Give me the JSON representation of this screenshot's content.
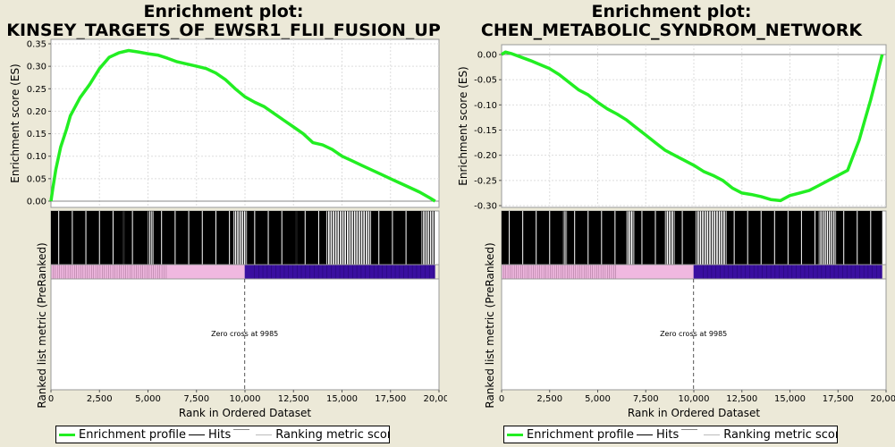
{
  "chart_data": [
    {
      "type": "line",
      "title": [
        "Enrichment plot:",
        "KINSEY_TARGETS_OF_EWSR1_FLII_FUSION_UP"
      ],
      "ylabel": "Enrichment score (ES)",
      "xlabel": "Rank in Ordered Dataset",
      "bottom_ylabel": "Ranked list metric (PreRanked)",
      "ylim": [
        0,
        0.35
      ],
      "yticks": [
        "0.00",
        "0.05",
        "0.10",
        "0.15",
        "0.20",
        "0.25",
        "0.30",
        "0.35"
      ],
      "xlim": [
        0,
        20000
      ],
      "xticks": [
        "0",
        "2,500",
        "5,000",
        "7,500",
        "10,000",
        "12,500",
        "15,000",
        "17,500",
        "20,000"
      ],
      "zero_cross_label": "Zero cross at 9985",
      "zero_cross": 9985,
      "n_genes": 19800,
      "series": [
        {
          "name": "Enrichment profile",
          "color": "#22ee22",
          "x": [
            0,
            100,
            250,
            500,
            800,
            1000,
            1500,
            2000,
            2500,
            3000,
            3500,
            4000,
            4500,
            5000,
            5500,
            6000,
            6500,
            7000,
            7500,
            8000,
            8500,
            9000,
            9500,
            10000,
            10500,
            11000,
            11500,
            12000,
            12500,
            13000,
            13500,
            14000,
            14500,
            15000,
            15500,
            16000,
            16500,
            17000,
            17500,
            18000,
            18500,
            19000,
            19500,
            19800
          ],
          "y": [
            0.0,
            0.03,
            0.07,
            0.12,
            0.16,
            0.19,
            0.23,
            0.26,
            0.295,
            0.32,
            0.33,
            0.335,
            0.332,
            0.328,
            0.325,
            0.318,
            0.31,
            0.305,
            0.3,
            0.295,
            0.285,
            0.27,
            0.25,
            0.232,
            0.22,
            0.21,
            0.195,
            0.18,
            0.165,
            0.15,
            0.13,
            0.125,
            0.115,
            0.1,
            0.09,
            0.08,
            0.07,
            0.06,
            0.05,
            0.04,
            0.03,
            0.02,
            0.008,
            0.0
          ]
        }
      ],
      "hits_dense_ranges": [
        [
          0,
          3700
        ],
        [
          3800,
          5000
        ],
        [
          5300,
          9400
        ],
        [
          10100,
          12600
        ],
        [
          12700,
          14200
        ],
        [
          16500,
          19100
        ]
      ],
      "hits_sparse_ranges": [
        [
          3700,
          3800
        ],
        [
          5000,
          5300
        ],
        [
          9400,
          10100
        ],
        [
          12600,
          12700
        ],
        [
          14200,
          16500
        ],
        [
          19100,
          19800
        ]
      ]
    },
    {
      "type": "line",
      "title": [
        "Enrichment plot:",
        "CHEN_METABOLIC_SYNDROM_NETWORK"
      ],
      "ylabel": "Enrichment score (ES)",
      "xlabel": "Rank in Ordered Dataset",
      "bottom_ylabel": "Ranked list metric (PreRanked)",
      "ylim": [
        -0.3,
        0.0
      ],
      "yticks": [
        "0.00",
        "-0.05",
        "-0.10",
        "-0.15",
        "-0.20",
        "-0.25",
        "-0.30"
      ],
      "xlim": [
        0,
        20000
      ],
      "xticks": [
        "0",
        "2,500",
        "5,000",
        "7,500",
        "10,000",
        "12,500",
        "15,000",
        "17,500",
        "20,000"
      ],
      "zero_cross_label": "Zero cross at 9985",
      "zero_cross": 9985,
      "n_genes": 19800,
      "series": [
        {
          "name": "Enrichment profile",
          "color": "#22ee22",
          "x": [
            0,
            200,
            500,
            1000,
            1500,
            2000,
            2500,
            3000,
            3500,
            4000,
            4500,
            5000,
            5500,
            6000,
            6500,
            7000,
            7500,
            8000,
            8500,
            9000,
            9500,
            10000,
            10500,
            11000,
            11500,
            12000,
            12500,
            13000,
            13500,
            14000,
            14500,
            15000,
            15500,
            16000,
            16500,
            17000,
            17500,
            18000,
            18300,
            18600,
            18900,
            19200,
            19500,
            19800
          ],
          "y": [
            0.0,
            0.005,
            0.002,
            -0.005,
            -0.012,
            -0.02,
            -0.028,
            -0.04,
            -0.055,
            -0.07,
            -0.08,
            -0.095,
            -0.108,
            -0.118,
            -0.13,
            -0.145,
            -0.16,
            -0.175,
            -0.19,
            -0.2,
            -0.21,
            -0.22,
            -0.232,
            -0.24,
            -0.25,
            -0.265,
            -0.275,
            -0.278,
            -0.282,
            -0.288,
            -0.29,
            -0.28,
            -0.275,
            -0.27,
            -0.26,
            -0.25,
            -0.24,
            -0.23,
            -0.2,
            -0.17,
            -0.13,
            -0.09,
            -0.045,
            0.0
          ]
        }
      ],
      "hits_dense_ranges": [
        [
          0,
          3200
        ],
        [
          3400,
          6500
        ],
        [
          6900,
          8500
        ],
        [
          9000,
          10100
        ],
        [
          11700,
          16500
        ],
        [
          17400,
          19800
        ]
      ],
      "hits_sparse_ranges": [
        [
          3200,
          3400
        ],
        [
          6500,
          6900
        ],
        [
          8500,
          9000
        ],
        [
          10100,
          11700
        ],
        [
          16500,
          17400
        ]
      ]
    }
  ],
  "legend": {
    "items": [
      {
        "label": "Enrichment profile",
        "color": "#22ee22"
      },
      {
        "label": "Hits",
        "color": "#000000"
      },
      {
        "label": "",
        "color": "#888888"
      },
      {
        "label": "Ranking metric scores",
        "color": "#bbbbbb"
      }
    ]
  },
  "colors": {
    "positive_bar": "#f0b8e0",
    "negative_bar": "#3a0fa0",
    "grid": "#dddddd"
  }
}
